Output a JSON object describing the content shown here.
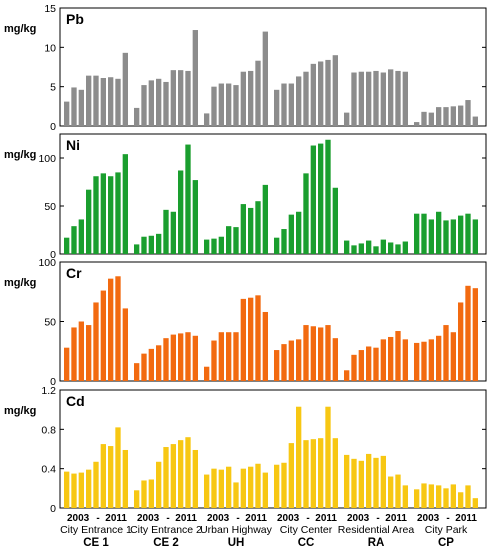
{
  "chart_data": {
    "type": "bar",
    "layout": "4 stacked panels sharing x groups",
    "groups": [
      {
        "name": "City Entrance 1",
        "code": "CE 1"
      },
      {
        "name": "City Entrance 2",
        "code": "CE 2"
      },
      {
        "name": "Urban Highway",
        "code": "UH"
      },
      {
        "name": "City Center",
        "code": "CC"
      },
      {
        "name": "Residential Area",
        "code": "RA"
      },
      {
        "name": "City Park",
        "code": "CP"
      }
    ],
    "year_labels": {
      "start": "2003",
      "sep": "-",
      "end": "2011"
    },
    "panels": [
      {
        "metal": "Pb",
        "unit": "mg/kg",
        "color": "#8c8c8c",
        "ylim": [
          0,
          15
        ],
        "yticks": [
          0,
          5,
          10,
          15
        ],
        "values": [
          [
            3.1,
            4.9,
            4.6,
            6.4,
            6.4,
            6.1,
            6.2,
            6.0,
            9.3
          ],
          [
            2.3,
            5.2,
            5.8,
            6.0,
            5.6,
            7.1,
            7.1,
            7.0,
            12.2
          ],
          [
            1.6,
            5.0,
            5.4,
            5.4,
            5.2,
            6.9,
            7.0,
            8.3,
            12.0
          ],
          [
            4.6,
            5.4,
            5.4,
            6.3,
            6.9,
            7.9,
            8.2,
            8.4,
            9.0
          ],
          [
            1.7,
            6.8,
            6.9,
            6.9,
            7.0,
            6.8,
            7.2,
            7.0,
            6.9
          ],
          [
            0.5,
            1.8,
            1.7,
            2.4,
            2.4,
            2.5,
            2.6,
            3.3,
            1.2
          ]
        ]
      },
      {
        "metal": "Ni",
        "unit": "mg/kg",
        "color": "#1a9e2e",
        "ylim": [
          0,
          125
        ],
        "yticks": [
          0,
          50,
          100
        ],
        "values": [
          [
            17,
            29,
            36,
            67,
            81,
            84,
            81,
            85,
            104
          ],
          [
            10,
            18,
            19,
            21,
            46,
            44,
            87,
            114,
            77
          ],
          [
            15,
            16,
            18,
            29,
            28,
            52,
            48,
            55,
            72
          ],
          [
            17,
            26,
            41,
            44,
            84,
            113,
            115,
            119,
            69
          ],
          [
            14,
            9,
            11,
            14,
            8,
            15,
            12,
            10,
            13
          ],
          [
            42,
            42,
            36,
            44,
            35,
            36,
            40,
            42,
            36
          ]
        ]
      },
      {
        "metal": "Cr",
        "unit": "mg/kg",
        "color": "#f26a10",
        "ylim": [
          0,
          100
        ],
        "yticks": [
          0,
          50,
          100
        ],
        "values": [
          [
            28,
            45,
            50,
            47,
            66,
            76,
            86,
            88,
            61
          ],
          [
            15,
            23,
            27,
            30,
            36,
            39,
            40,
            41,
            38
          ],
          [
            12,
            34,
            41,
            41,
            41,
            69,
            70,
            72,
            58
          ],
          [
            26,
            31,
            34,
            35,
            47,
            46,
            45,
            47,
            36
          ],
          [
            9,
            22,
            26,
            29,
            28,
            35,
            37,
            42,
            35
          ],
          [
            32,
            33,
            35,
            38,
            47,
            41,
            66,
            80,
            78
          ]
        ]
      },
      {
        "metal": "Cd",
        "unit": "mg/kg",
        "color": "#f7c713",
        "ylim": [
          0,
          1.2
        ],
        "yticks": [
          0,
          0.4,
          0.8,
          1.2
        ],
        "values": [
          [
            0.37,
            0.35,
            0.36,
            0.39,
            0.47,
            0.65,
            0.63,
            0.82,
            0.59
          ],
          [
            0.18,
            0.28,
            0.29,
            0.47,
            0.62,
            0.65,
            0.69,
            0.72,
            0.59
          ],
          [
            0.34,
            0.4,
            0.39,
            0.42,
            0.26,
            0.4,
            0.42,
            0.45,
            0.36
          ],
          [
            0.44,
            0.46,
            0.66,
            1.03,
            0.69,
            0.7,
            0.71,
            1.03,
            0.71
          ],
          [
            0.54,
            0.5,
            0.48,
            0.55,
            0.51,
            0.53,
            0.32,
            0.34,
            0.23
          ],
          [
            0.19,
            0.25,
            0.24,
            0.23,
            0.2,
            0.24,
            0.16,
            0.23,
            0.1
          ]
        ]
      }
    ]
  }
}
